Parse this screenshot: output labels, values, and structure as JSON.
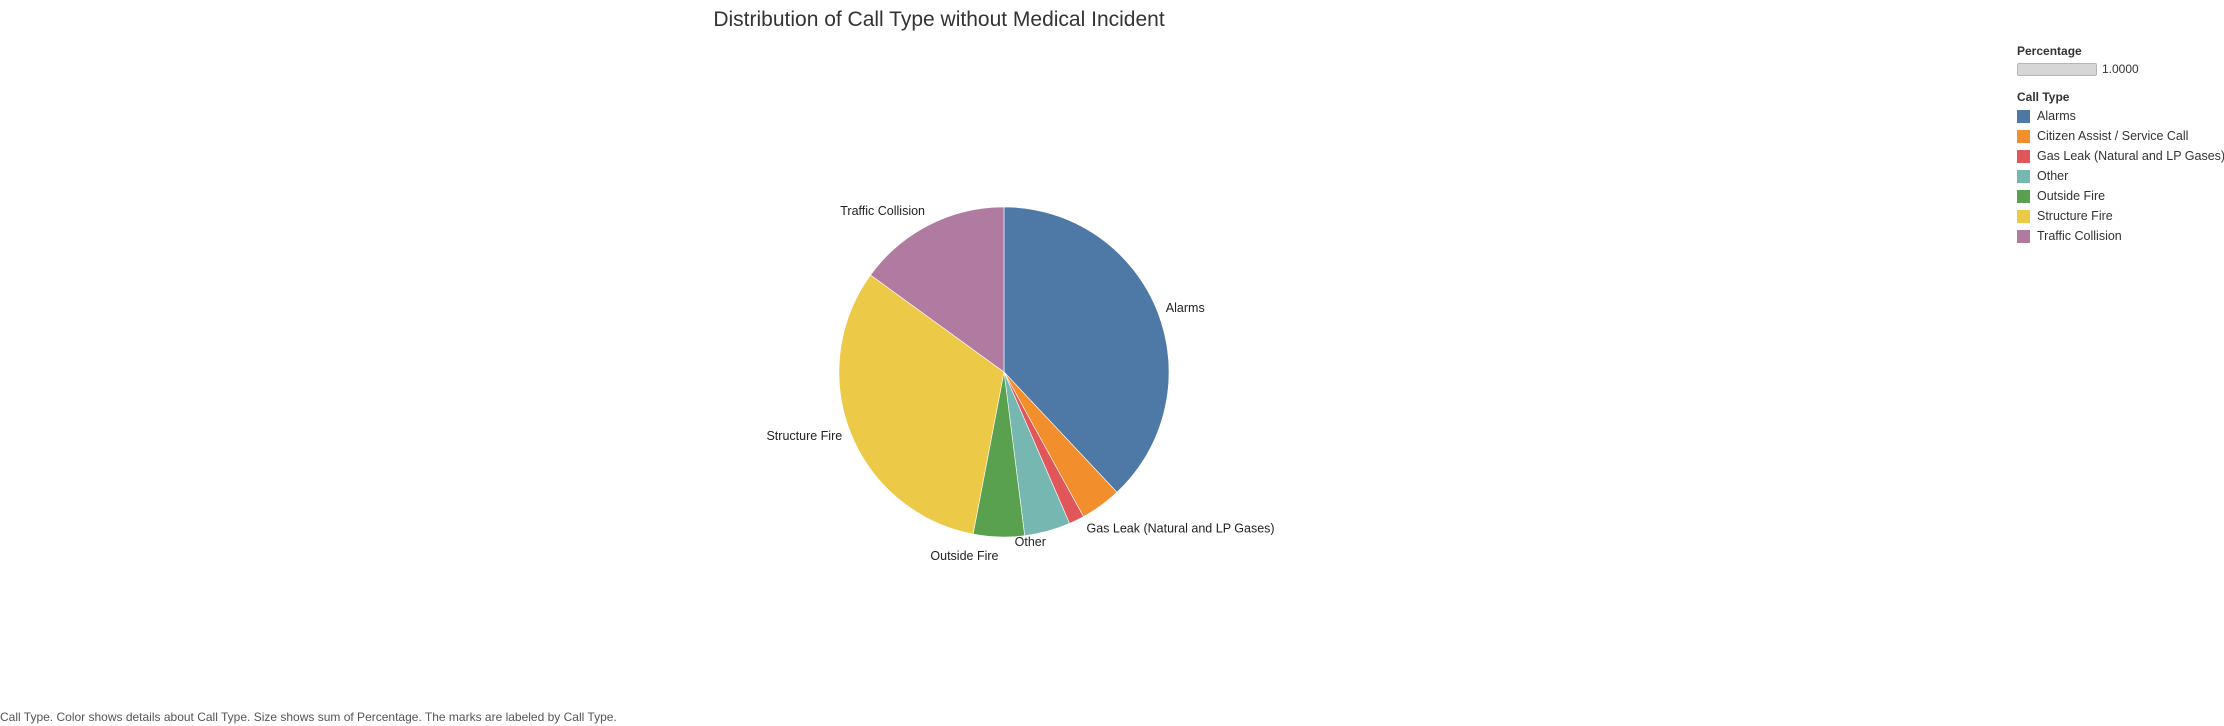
{
  "chart_data": {
    "type": "pie",
    "title": "Distribution of Call Type without Medical Incident",
    "categories": [
      "Alarms",
      "Citizen Assist / Service Call",
      "Gas Leak (Natural and LP Gases)",
      "Other",
      "Outside Fire",
      "Structure Fire",
      "Traffic Collision"
    ],
    "values": [
      0.38,
      0.04,
      0.015,
      0.045,
      0.05,
      0.32,
      0.15
    ],
    "colors": [
      "#4e79a7",
      "#f28e2b",
      "#e15759",
      "#76b7b2",
      "#59a14f",
      "#edc948",
      "#b07aa1"
    ],
    "slice_labels": [
      "Alarms",
      "",
      "Gas Leak (Natural and LP Gases)",
      "Other",
      "Outside Fire",
      "Structure Fire",
      "Traffic Collision"
    ],
    "start_angle": "12 o'clock",
    "direction": "clockwise",
    "legend_position": "top-right"
  },
  "legend": {
    "size_title": "Percentage",
    "size_value": "1.0000",
    "color_title": "Call Type",
    "items": [
      {
        "label": "Alarms",
        "color": "#4e79a7"
      },
      {
        "label": "Citizen Assist / Service Call",
        "color": "#f28e2b"
      },
      {
        "label": "Gas Leak (Natural and LP Gases)",
        "color": "#e15759"
      },
      {
        "label": "Other",
        "color": "#76b7b2"
      },
      {
        "label": "Outside Fire",
        "color": "#59a14f"
      },
      {
        "label": "Structure Fire",
        "color": "#edc948"
      },
      {
        "label": "Traffic Collision",
        "color": "#b07aa1"
      }
    ]
  },
  "caption": "Call Type.  Color shows details about Call Type.  Size shows sum of Percentage.  The marks are labeled by Call Type."
}
